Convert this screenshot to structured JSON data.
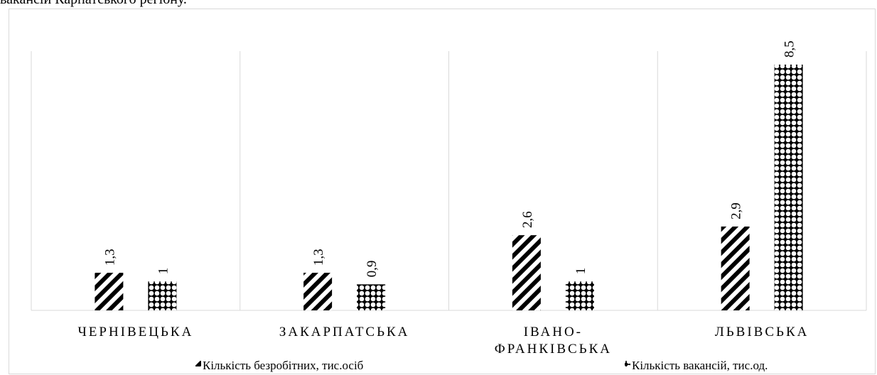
{
  "page": {
    "caption": "вакансій Карпатського регіону."
  },
  "chart_data": {
    "type": "bar",
    "categories": [
      "ЧЕРНІВЕЦЬКА",
      "ЗАКАРПАТСЬКА",
      "ІВАНО-ФРАНКІВСЬКА",
      "ЛЬВІВСЬКА"
    ],
    "category_lines": [
      [
        "ЧЕРНІВЕЦЬКА"
      ],
      [
        "ЗАКАРПАТСЬКА"
      ],
      [
        "ІВАНО-",
        "ФРАНКІВСЬКА"
      ],
      [
        "ЛЬВІВСЬКА"
      ]
    ],
    "series": [
      {
        "name": "Кількість безробітних, тис.осіб",
        "values": [
          1.3,
          1.3,
          2.6,
          2.9
        ],
        "value_labels": [
          "1,3",
          "1,3",
          "2,6",
          "2,9"
        ],
        "pattern": "diagonal-stripes"
      },
      {
        "name": "Кількість вакансій, тис.од.",
        "values": [
          1,
          0.9,
          1,
          8.5
        ],
        "value_labels": [
          "1",
          "0,9",
          "1",
          "8,5"
        ],
        "pattern": "diamond-dots"
      }
    ],
    "ylim": [
      0,
      8.5
    ],
    "grid": "vertical category separators",
    "legend_position": "bottom",
    "colors": {
      "ink": "#000000",
      "gridline": "#d9d9d9",
      "background": "#ffffff"
    }
  }
}
